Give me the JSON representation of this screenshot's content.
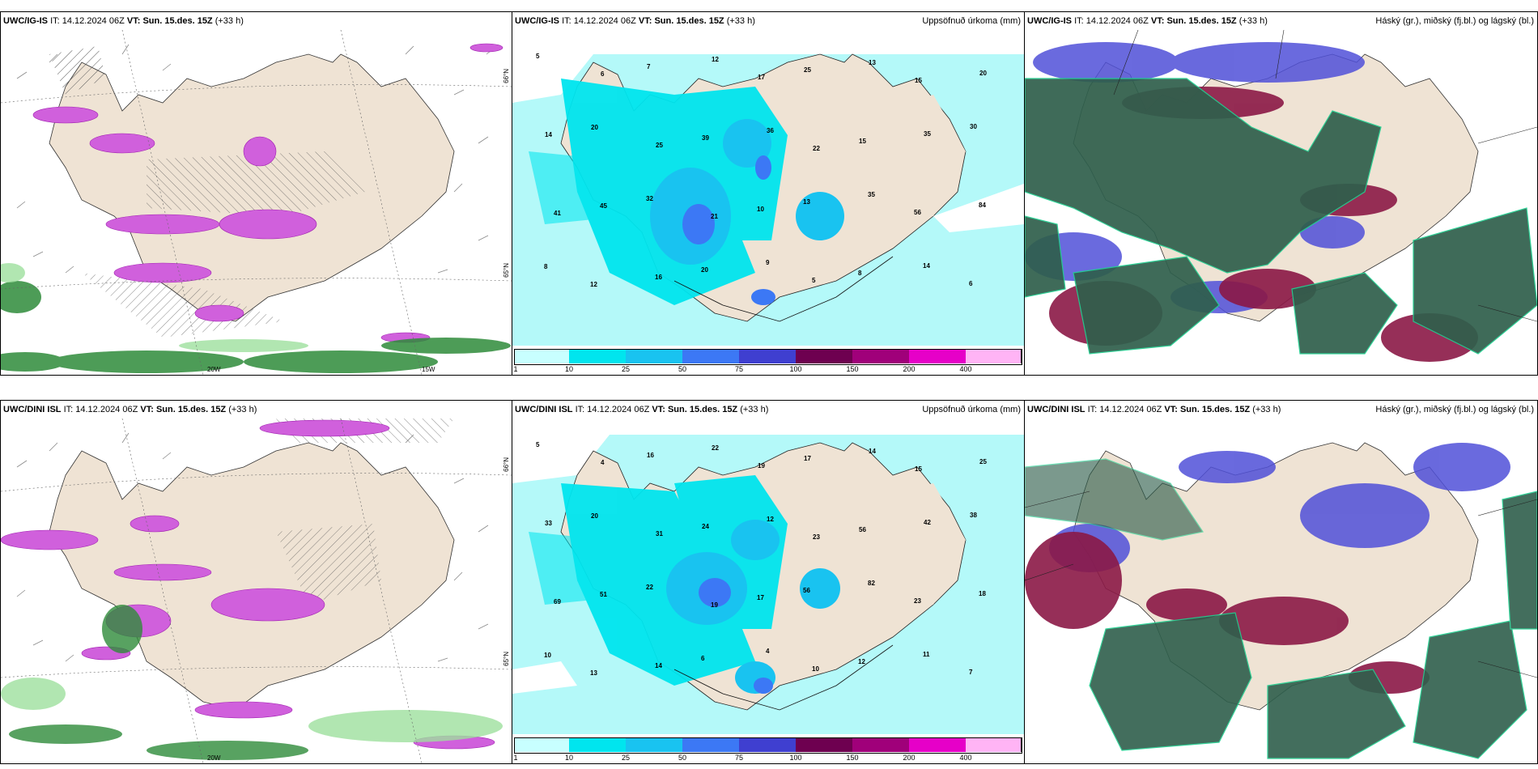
{
  "rows": [
    {
      "model": "UWC/IG-IS",
      "it_label": "IT:",
      "it_value": "14.12.2024 06Z",
      "vt_label": "VT:",
      "vt_value": "Sun. 15.des. 15Z",
      "lead": "(+33 h)"
    },
    {
      "model": "UWC/DINI ISL",
      "it_label": "IT:",
      "it_value": "14.12.2024 06Z",
      "vt_label": "VT:",
      "vt_value": "Sun. 15.des. 15Z",
      "lead": "(+33 h)"
    }
  ],
  "panels": {
    "precip_title": "Uppsöfnuð úrkoma (mm)",
    "cloud_title": "Háský (gr.), miðský (fj.bl.) og lágský (bl.)"
  },
  "axes": {
    "lat66": "66°N",
    "lat65": "65°N",
    "lon20": "20W",
    "lon15": "15W"
  },
  "colorbar": {
    "labels": [
      "1",
      "10",
      "25",
      "50",
      "75",
      "100",
      "150",
      "200",
      "400"
    ],
    "colors": [
      "#c8ffff",
      "#00e5ee",
      "#19c3f0",
      "#3c78f5",
      "#3f3fd0",
      "#6e0050",
      "#a0007a",
      "#e600c8",
      "#ffb4f5"
    ]
  },
  "colors": {
    "land": "#efe3d4",
    "precip_light": "#b4f9f9",
    "precip_mid": "#00e5ee",
    "precip_heavy": "#3c78f5",
    "snow": "#d060dc",
    "rain_green": "#2e8b3a",
    "cloud_high": "#2f5f4c",
    "cloud_mid": "#8b1846",
    "cloud_low": "#5050d8"
  },
  "precip_values_top": [
    "5",
    "6",
    "7",
    "12",
    "17",
    "25",
    "13",
    "15",
    "20",
    "14",
    "20",
    "25",
    "39",
    "36",
    "22",
    "15",
    "35",
    "30",
    "41",
    "45",
    "32",
    "21",
    "10",
    "13",
    "35",
    "56",
    "84",
    "8",
    "12",
    "16",
    "20",
    "9",
    "5",
    "8",
    "14",
    "6"
  ],
  "precip_values_bottom": [
    "5",
    "4",
    "16",
    "22",
    "19",
    "17",
    "14",
    "15",
    "25",
    "33",
    "20",
    "31",
    "24",
    "12",
    "23",
    "56",
    "42",
    "38",
    "69",
    "51",
    "22",
    "19",
    "17",
    "56",
    "82",
    "23",
    "18",
    "10",
    "13",
    "14",
    "6",
    "4",
    "10",
    "12",
    "11",
    "7"
  ]
}
